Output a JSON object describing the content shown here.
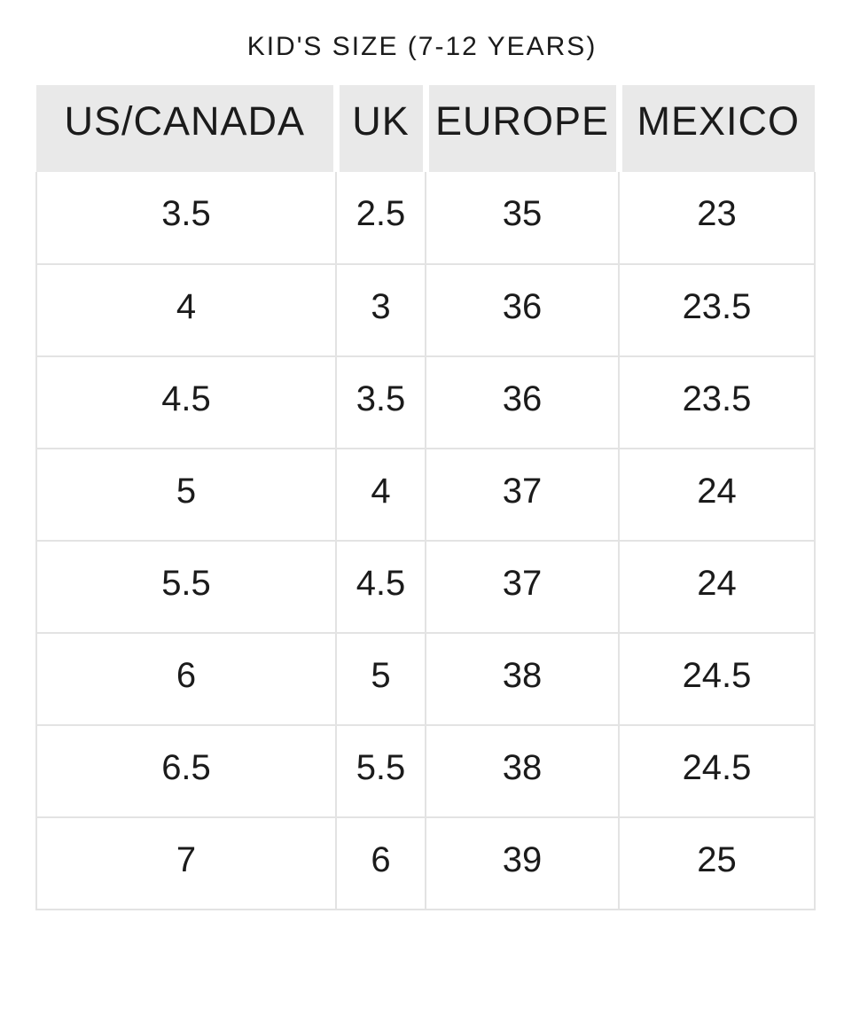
{
  "title": "KID'S SIZE (7-12 YEARS)",
  "table": {
    "columns": [
      "US/CANADA",
      "UK",
      "EUROPE",
      "MEXICO"
    ],
    "rows": [
      [
        "3.5",
        "2.5",
        "35",
        "23"
      ],
      [
        "4",
        "3",
        "36",
        "23.5"
      ],
      [
        "4.5",
        "3.5",
        "36",
        "23.5"
      ],
      [
        "5",
        "4",
        "37",
        "24"
      ],
      [
        "5.5",
        "4.5",
        "37",
        "24"
      ],
      [
        "6",
        "5",
        "38",
        "24.5"
      ],
      [
        "6.5",
        "5.5",
        "38",
        "24.5"
      ],
      [
        "7",
        "6",
        "39",
        "25"
      ]
    ]
  },
  "colors": {
    "header_bg": "#e9e9e9",
    "grid_border": "#e3e3e3",
    "text": "#1b1b1b",
    "background": "#ffffff"
  }
}
